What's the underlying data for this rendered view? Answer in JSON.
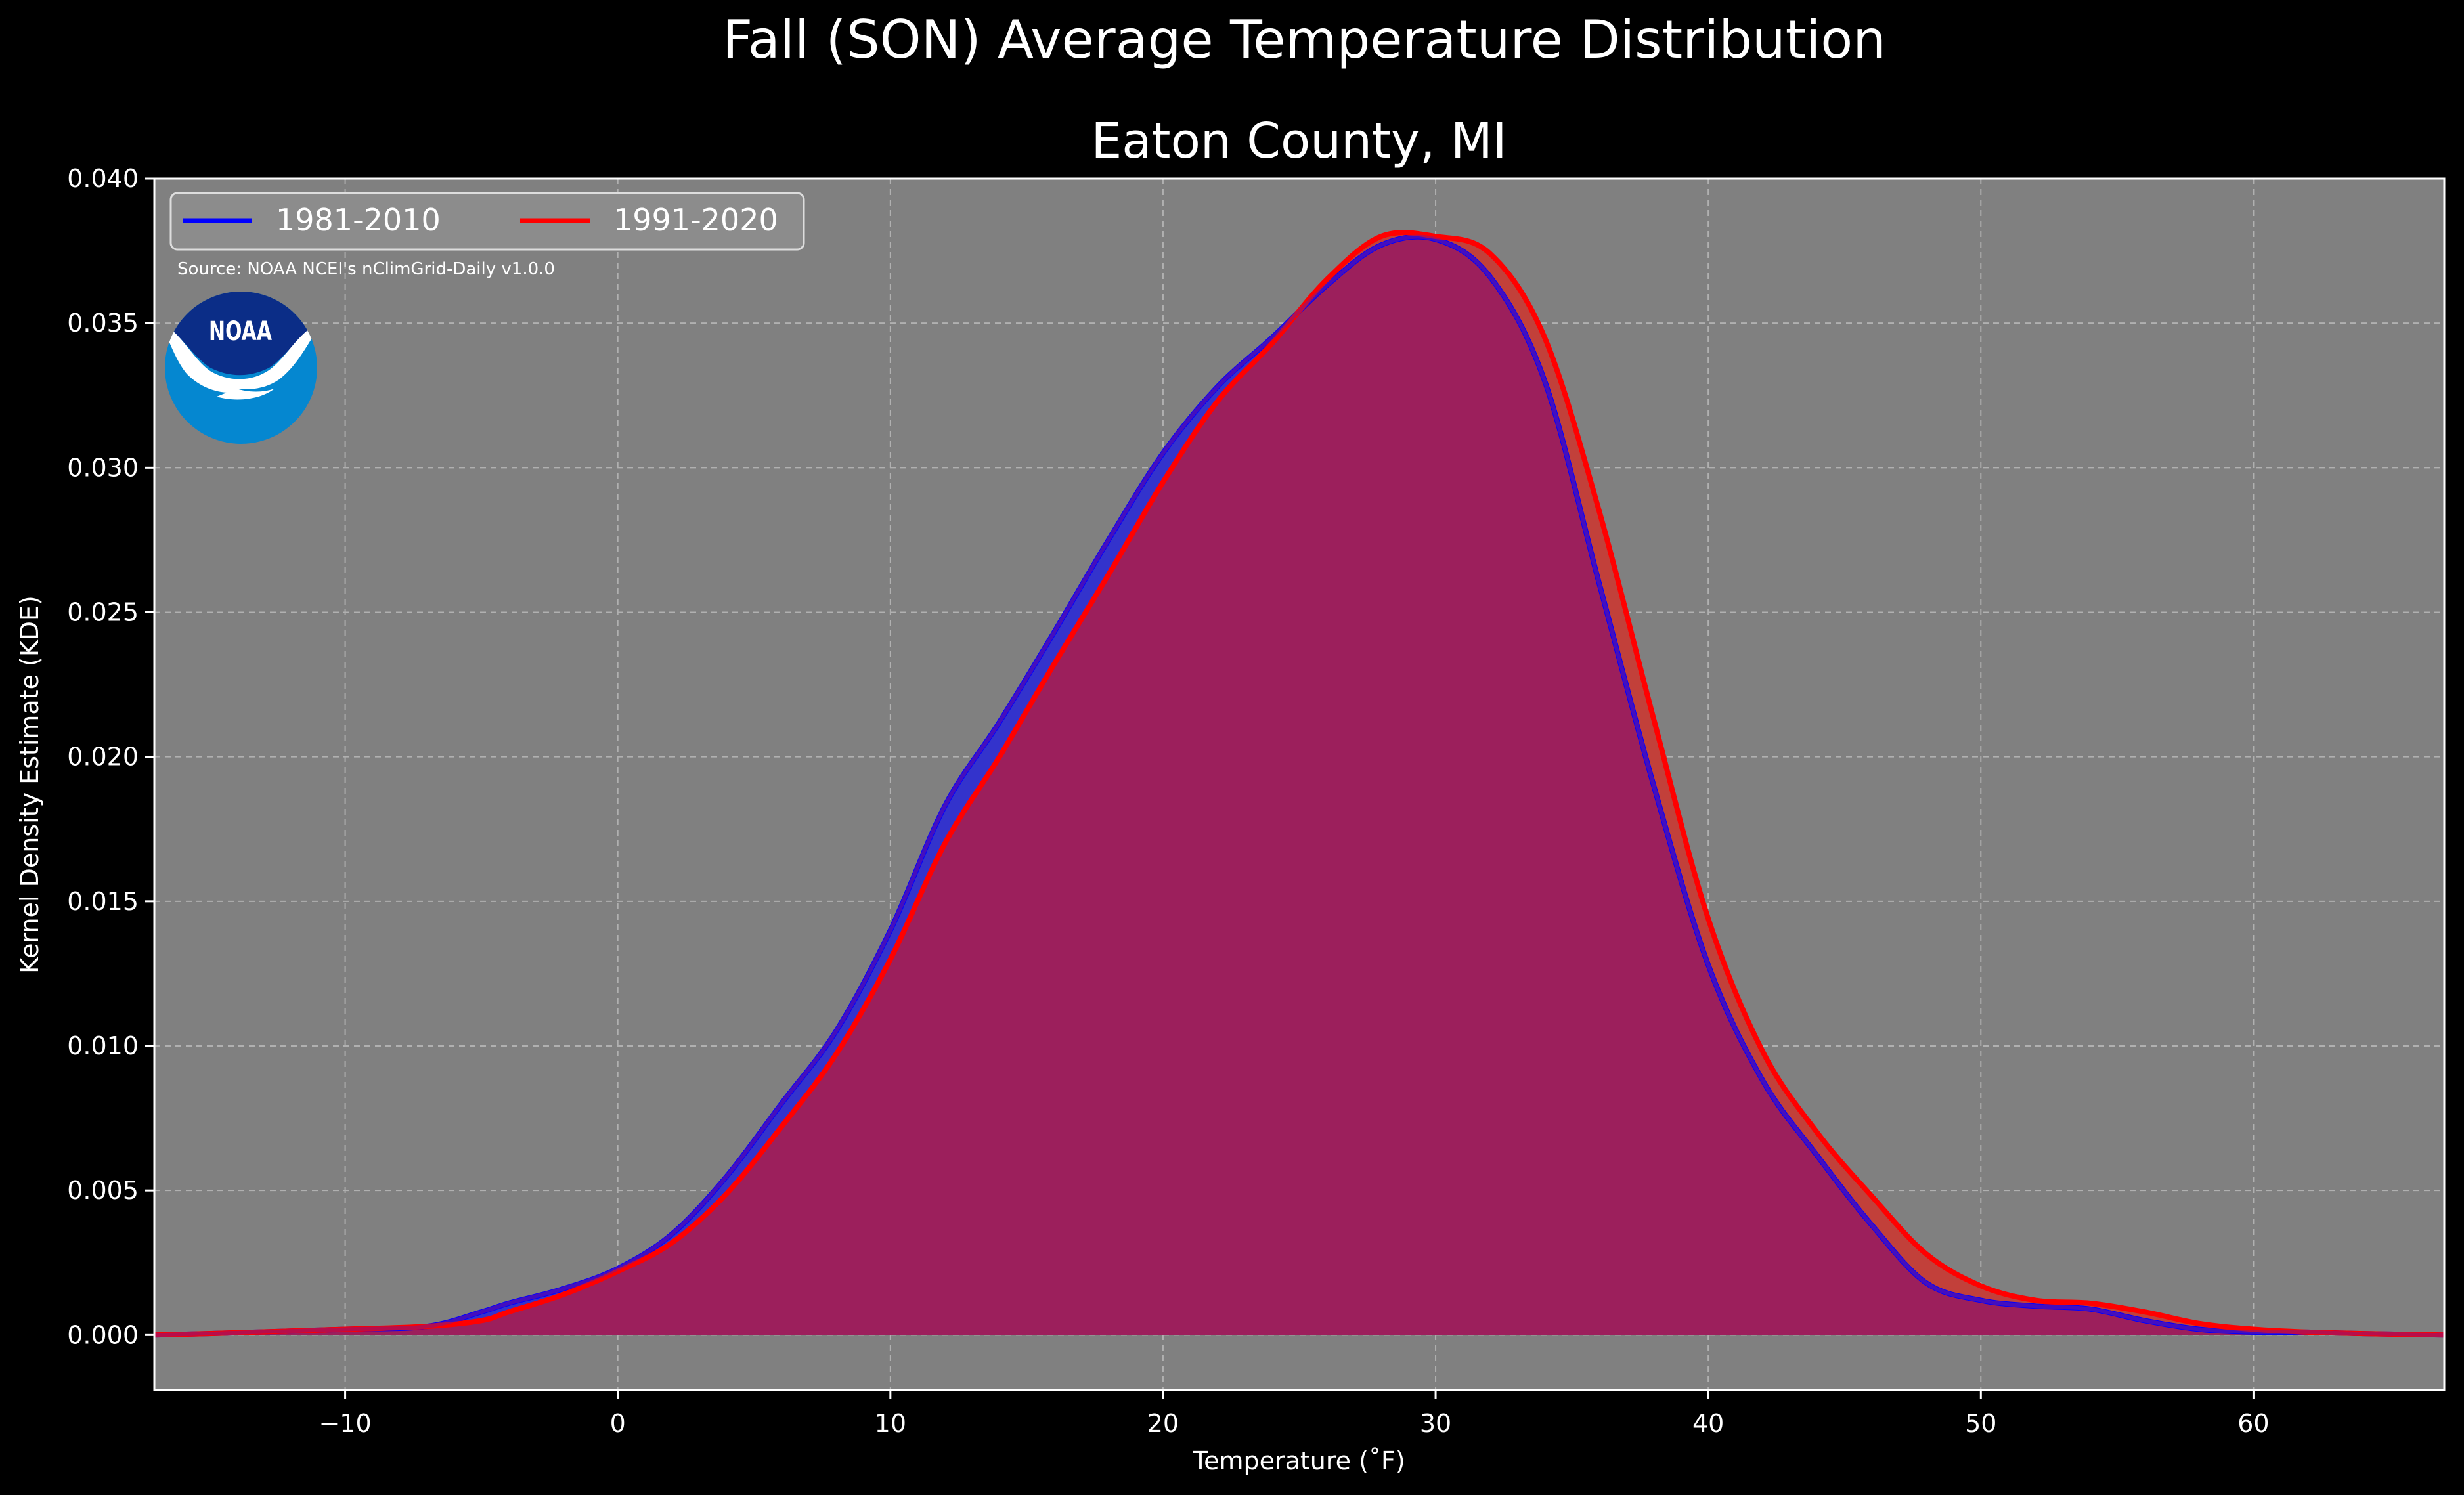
{
  "figure": {
    "suptitle": "Fall (SON) Average Temperature Distribution",
    "title": "Eaton County, MI",
    "source": "Source: NOAA NCEI's nClimGrid-Daily v1.0.0",
    "logo_text": "NOAA",
    "colors": {
      "background": "#000000",
      "plot_background": "#808080",
      "series_1": "#0000ff",
      "series_2": "#ff0000",
      "series_1_fill": "#3333cc",
      "series_2_fill": "#c2403a",
      "overlap_fill": "#9c1f5c",
      "noaa_dark": "#0b2d87",
      "noaa_light": "#0587d0"
    }
  },
  "chart_data": {
    "type": "area",
    "title": "Eaton County, MI",
    "xlabel": "Temperature (˚F)",
    "ylabel": "Kernel Density Estimate (KDE)",
    "xlim": [
      -17,
      67
    ],
    "ylim": [
      -0.0019,
      0.04
    ],
    "xticks": [
      -10,
      0,
      10,
      20,
      30,
      40,
      50,
      60
    ],
    "xtick_labels": [
      "−10",
      "0",
      "10",
      "20",
      "30",
      "40",
      "50",
      "60"
    ],
    "yticks": [
      0,
      0.005,
      0.01,
      0.015,
      0.02,
      0.025,
      0.03,
      0.035,
      0.04
    ],
    "ytick_labels": [
      "0.000",
      "0.005",
      "0.010",
      "0.015",
      "0.020",
      "0.025",
      "0.030",
      "0.035",
      "0.040"
    ],
    "grid": true,
    "legend_position": "top-left",
    "series": [
      {
        "name": "1981-2010",
        "color": "#0000ff",
        "x": [
          -17,
          -15,
          -10,
          -7,
          -5,
          -4,
          -2,
          0,
          2,
          4,
          6,
          8,
          10,
          12,
          14,
          16,
          18,
          20,
          22,
          24,
          26,
          28,
          30,
          32,
          34,
          36,
          38,
          40,
          42,
          44,
          46,
          48,
          50,
          52,
          54,
          56,
          58,
          60,
          62,
          64,
          67
        ],
        "y": [
          0,
          5e-05,
          0.0002,
          0.0003,
          0.0008,
          0.0011,
          0.0016,
          0.0023,
          0.0035,
          0.0055,
          0.008,
          0.0105,
          0.014,
          0.0183,
          0.0212,
          0.0243,
          0.0275,
          0.0305,
          0.0328,
          0.0345,
          0.0363,
          0.0377,
          0.0379,
          0.0366,
          0.033,
          0.026,
          0.019,
          0.0128,
          0.0088,
          0.0062,
          0.0038,
          0.0018,
          0.0012,
          0.001,
          0.0009,
          0.0005,
          0.0002,
          0.0001,
          0.0001,
          5e-05,
          0
        ]
      },
      {
        "name": "1991-2020",
        "color": "#ff0000",
        "x": [
          -17,
          -15,
          -10,
          -7,
          -5,
          -4,
          -2,
          0,
          2,
          4,
          6,
          8,
          10,
          12,
          14,
          16,
          18,
          20,
          22,
          24,
          26,
          28,
          30,
          32,
          34,
          36,
          38,
          40,
          42,
          44,
          46,
          48,
          50,
          52,
          54,
          56,
          58,
          60,
          62,
          64,
          67
        ],
        "y": [
          0,
          5e-05,
          0.0002,
          0.0003,
          0.0005,
          0.0008,
          0.0014,
          0.0022,
          0.0032,
          0.0049,
          0.0072,
          0.0097,
          0.013,
          0.017,
          0.02,
          0.0232,
          0.0263,
          0.0295,
          0.0323,
          0.0343,
          0.0365,
          0.038,
          0.038,
          0.0374,
          0.0345,
          0.0285,
          0.0213,
          0.0144,
          0.0098,
          0.007,
          0.0048,
          0.0028,
          0.0017,
          0.0012,
          0.0011,
          0.0008,
          0.0004,
          0.0002,
          0.0001,
          5e-05,
          0
        ]
      }
    ]
  }
}
